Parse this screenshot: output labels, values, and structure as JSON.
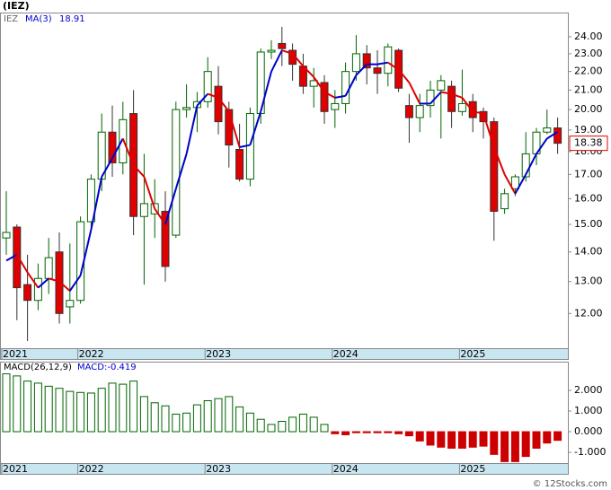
{
  "chart_data": [
    {
      "type": "candlestick",
      "title": "(IEZ)",
      "symbol": "IEZ",
      "categories": [
        "2021",
        null,
        null,
        null,
        null,
        null,
        null,
        "2022",
        null,
        null,
        null,
        null,
        null,
        null,
        null,
        null,
        null,
        null,
        null,
        "2023",
        null,
        null,
        null,
        null,
        null,
        null,
        null,
        null,
        null,
        null,
        null,
        "2024",
        null,
        null,
        null,
        null,
        null,
        null,
        null,
        null,
        null,
        null,
        null,
        "2025",
        null,
        null,
        null,
        null,
        null,
        null,
        null,
        null,
        null
      ],
      "open": [
        14.5,
        14.9,
        12.9,
        12.4,
        13.1,
        14.0,
        12.2,
        12.4,
        15.1,
        16.8,
        18.9,
        17.5,
        19.8,
        15.3,
        15.4,
        15.5,
        14.6,
        20.0,
        20.1,
        20.4,
        21.2,
        20.0,
        18.1,
        16.8,
        19.8,
        23.1,
        23.6,
        23.2,
        22.3,
        21.2,
        21.4,
        20.0,
        20.3,
        22.0,
        23.0,
        22.2,
        21.9,
        23.2,
        20.2,
        19.6,
        20.2,
        21.0,
        21.2,
        19.9,
        20.4,
        19.9,
        19.4,
        15.6,
        16.4,
        16.9,
        17.9,
        18.9,
        19.1
      ],
      "high": [
        16.3,
        15.0,
        13.9,
        13.6,
        14.5,
        14.7,
        14.3,
        15.3,
        17.0,
        19.8,
        20.2,
        20.4,
        21.0,
        17.9,
        16.8,
        16.3,
        20.4,
        21.3,
        20.9,
        22.8,
        22.3,
        20.4,
        19.3,
        20.1,
        23.3,
        23.8,
        24.6,
        23.6,
        23.0,
        22.2,
        21.8,
        21.0,
        22.5,
        24.1,
        23.5,
        23.2,
        23.6,
        23.3,
        20.8,
        20.8,
        21.5,
        21.8,
        21.5,
        22.1,
        20.8,
        20.1,
        19.6,
        16.4,
        17.0,
        18.9,
        19.1,
        20.0,
        19.6
      ],
      "low": [
        13.9,
        11.8,
        11.2,
        12.1,
        12.6,
        11.7,
        11.7,
        12.3,
        14.9,
        16.3,
        16.9,
        17.0,
        14.6,
        12.9,
        14.5,
        13.0,
        14.5,
        19.6,
        18.9,
        20.1,
        18.8,
        17.3,
        16.7,
        16.5,
        19.3,
        22.7,
        22.3,
        21.5,
        20.8,
        20.1,
        19.3,
        19.1,
        19.8,
        21.5,
        21.3,
        20.8,
        21.2,
        20.9,
        18.4,
        18.9,
        19.6,
        18.6,
        19.1,
        19.7,
        18.9,
        18.6,
        14.4,
        15.4,
        16.1,
        16.7,
        17.4,
        18.8,
        17.9
      ],
      "close": [
        14.7,
        12.8,
        12.4,
        13.1,
        13.8,
        12.0,
        12.4,
        15.1,
        16.8,
        18.9,
        17.5,
        19.5,
        15.3,
        15.8,
        15.8,
        13.5,
        20.0,
        20.1,
        20.4,
        22.0,
        19.4,
        18.3,
        16.8,
        19.8,
        23.1,
        23.2,
        23.3,
        22.4,
        21.2,
        21.5,
        19.9,
        20.3,
        22.0,
        23.0,
        22.2,
        21.9,
        23.4,
        21.1,
        19.6,
        20.2,
        21.0,
        21.5,
        19.9,
        20.3,
        19.6,
        19.4,
        15.5,
        16.2,
        16.9,
        17.9,
        18.9,
        19.1,
        18.38
      ],
      "up_color": "#006400",
      "down_color": "#e00000",
      "ma": {
        "name": "MA(3)",
        "color": "#0000cc",
        "down_color": "#e00000",
        "current": 18.91,
        "values": [
          13.7,
          13.9,
          13.3,
          12.8,
          13.1,
          13.0,
          12.7,
          13.2,
          14.8,
          16.9,
          17.7,
          18.6,
          17.4,
          16.9,
          15.6,
          15.0,
          16.4,
          17.9,
          20.2,
          20.8,
          20.6,
          19.9,
          18.2,
          18.3,
          19.9,
          22.0,
          23.2,
          23.0,
          22.3,
          21.7,
          20.9,
          20.6,
          20.7,
          21.8,
          22.4,
          22.4,
          22.5,
          22.1,
          21.4,
          20.3,
          20.3,
          20.9,
          20.8,
          20.6,
          19.9,
          19.8,
          18.2,
          17.0,
          16.2,
          17.0,
          17.9,
          18.6,
          18.91
        ]
      },
      "last_price": 18.38,
      "log_scale": true,
      "ylim": [
        11,
        25.5
      ],
      "yticks": [
        {
          "value": 12,
          "label": "12.00"
        },
        {
          "value": 13,
          "label": "13.00"
        },
        {
          "value": 14,
          "label": "14.00"
        },
        {
          "value": 15,
          "label": "15.00"
        },
        {
          "value": 16,
          "label": "16.00"
        },
        {
          "value": 17,
          "label": "17.00"
        },
        {
          "value": 18,
          "label": "18.00"
        },
        {
          "value": 19,
          "label": "19.00"
        },
        {
          "value": 20,
          "label": "20.00"
        },
        {
          "value": 21,
          "label": "21.00"
        },
        {
          "value": 22,
          "label": "22.00"
        },
        {
          "value": 23,
          "label": "23.00"
        },
        {
          "value": 24,
          "label": "24.00"
        }
      ]
    },
    {
      "type": "bar",
      "title": "MACD(26,12,9)",
      "current_name": "MACD:",
      "current": -0.419,
      "categories": [
        "2021",
        null,
        null,
        null,
        null,
        null,
        null,
        "2022",
        null,
        null,
        null,
        null,
        null,
        null,
        null,
        null,
        null,
        null,
        null,
        "2023",
        null,
        null,
        null,
        null,
        null,
        null,
        null,
        null,
        null,
        null,
        null,
        "2024",
        null,
        null,
        null,
        null,
        null,
        null,
        null,
        null,
        null,
        null,
        null,
        "2025",
        null,
        null,
        null,
        null,
        null,
        null,
        null,
        null,
        null
      ],
      "values": [
        2.8,
        2.7,
        2.45,
        2.35,
        2.2,
        2.1,
        1.95,
        1.9,
        1.87,
        2.1,
        2.35,
        2.3,
        2.45,
        1.7,
        1.4,
        1.25,
        0.85,
        0.9,
        1.3,
        1.5,
        1.6,
        1.7,
        1.2,
        0.9,
        0.6,
        0.35,
        0.5,
        0.7,
        0.85,
        0.7,
        0.35,
        -0.1,
        -0.15,
        -0.05,
        -0.05,
        -0.05,
        -0.05,
        -0.1,
        -0.2,
        -0.45,
        -0.65,
        -0.75,
        -0.8,
        -0.8,
        -0.75,
        -0.7,
        -1.1,
        -1.45,
        -1.45,
        -1.2,
        -0.8,
        -0.55,
        -0.419
      ],
      "pos_color": "#006400",
      "neg_color": "#cc0000",
      "ylim": [
        -1.52,
        3.39
      ],
      "yticks": [
        {
          "value": 2,
          "label": "2.000"
        },
        {
          "value": 1,
          "label": "1.000"
        },
        {
          "value": 0,
          "label": "0.000"
        },
        {
          "value": -1,
          "label": "-1.000"
        }
      ]
    }
  ],
  "watermark": "© 12Stocks.com"
}
